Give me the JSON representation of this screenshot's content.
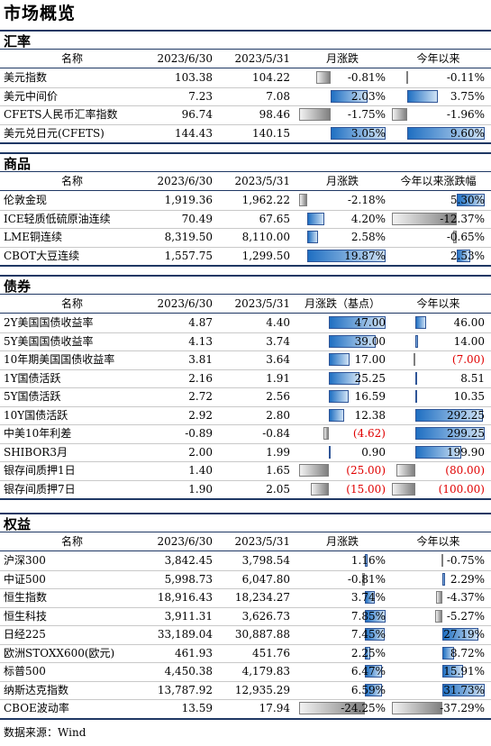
{
  "page_title": "市场概览",
  "source_note": "数据来源：Wind",
  "chart_data": {
    "type": "table",
    "sections": [
      {
        "title": "汇率",
        "headers": [
          "名称",
          "2023/6/30",
          "2023/5/31",
          "月涨跌",
          "今年以来"
        ],
        "bar1_unit": "pct",
        "bar2_unit": "pct",
        "rows": [
          {
            "name": "美元指数",
            "v1": "103.38",
            "v2": "104.22",
            "b1": -0.81,
            "b1_label": "-0.81%",
            "b2": -0.11,
            "b2_label": "-0.11%"
          },
          {
            "name": "美元中间价",
            "v1": "7.23",
            "v2": "7.08",
            "b1": 2.03,
            "b1_label": "2.03%",
            "b2": 3.75,
            "b2_label": "3.75%"
          },
          {
            "name": "CFETS人民币汇率指数",
            "v1": "96.74",
            "v2": "98.46",
            "b1": -1.75,
            "b1_label": "-1.75%",
            "b2": -1.96,
            "b2_label": "-1.96%"
          },
          {
            "name": "美元兑日元(CFETS)",
            "v1": "144.43",
            "v2": "140.15",
            "b1": 3.05,
            "b1_label": "3.05%",
            "b2": 9.6,
            "b2_label": "9.60%"
          }
        ]
      },
      {
        "title": "商品",
        "headers": [
          "名称",
          "2023/6/30",
          "2023/5/31",
          "月涨跌",
          "今年以来涨跌幅"
        ],
        "bar1_unit": "pct",
        "bar2_unit": "pct",
        "rows": [
          {
            "name": "伦敦金现",
            "v1": "1,919.36",
            "v2": "1,962.22",
            "b1": -2.18,
            "b1_label": "-2.18%",
            "b2": 5.3,
            "b2_label": "5.30%"
          },
          {
            "name": "ICE轻质低硫原油连续",
            "v1": "70.49",
            "v2": "67.65",
            "b1": 4.2,
            "b1_label": "4.20%",
            "b2": -12.37,
            "b2_label": "-12.37%"
          },
          {
            "name": "LME铜连续",
            "v1": "8,319.50",
            "v2": "8,110.00",
            "b1": 2.58,
            "b1_label": "2.58%",
            "b2": -0.65,
            "b2_label": "-0.65%"
          },
          {
            "name": "CBOT大豆连续",
            "v1": "1,557.75",
            "v2": "1,299.50",
            "b1": 19.87,
            "b1_label": "19.87%",
            "b2": 2.53,
            "b2_label": "2.53%"
          }
        ]
      },
      {
        "title": "债券",
        "headers": [
          "名称",
          "2023/6/30",
          "2023/5/31",
          "月涨跌（基点）",
          "今年以来"
        ],
        "bar1_unit": "bp",
        "bar2_unit": "bp",
        "rows": [
          {
            "name": "2Y美国国债收益率",
            "v1": "4.87",
            "v2": "4.40",
            "b1": 47.0,
            "b1_label": "47.00",
            "b2": 46.0,
            "b2_label": "46.00"
          },
          {
            "name": "5Y美国国债收益率",
            "v1": "4.13",
            "v2": "3.74",
            "b1": 39.0,
            "b1_label": "39.00",
            "b2": 14.0,
            "b2_label": "14.00"
          },
          {
            "name": "10年期美国国债收益率",
            "v1": "3.81",
            "v2": "3.64",
            "b1": 17.0,
            "b1_label": "17.00",
            "b2": -7.0,
            "b2_label": "(7.00)"
          },
          {
            "name": "1Y国债活跃",
            "v1": "2.16",
            "v2": "1.91",
            "b1": 25.25,
            "b1_label": "25.25",
            "b2": 8.51,
            "b2_label": "8.51"
          },
          {
            "name": "5Y国债活跃",
            "v1": "2.72",
            "v2": "2.56",
            "b1": 16.59,
            "b1_label": "16.59",
            "b2": 10.35,
            "b2_label": "10.35"
          },
          {
            "name": "10Y国债活跃",
            "v1": "2.92",
            "v2": "2.80",
            "b1": 12.38,
            "b1_label": "12.38",
            "b2": 292.25,
            "b2_label": "292.25"
          },
          {
            "name": "中美10年利差",
            "v1": "-0.89",
            "v2": "-0.84",
            "b1": -4.62,
            "b1_label": "(4.62)",
            "b2": 299.25,
            "b2_label": "299.25"
          },
          {
            "name": "SHIBOR3月",
            "v1": "2.00",
            "v2": "1.99",
            "b1": 0.9,
            "b1_label": "0.90",
            "b2": 199.9,
            "b2_label": "199.90"
          },
          {
            "name": "银存间质押1日",
            "v1": "1.40",
            "v2": "1.65",
            "b1": -25.0,
            "b1_label": "(25.00)",
            "b2": -80.0,
            "b2_label": "(80.00)"
          },
          {
            "name": "银存间质押7日",
            "v1": "1.90",
            "v2": "2.05",
            "b1": -15.0,
            "b1_label": "(15.00)",
            "b2": -100.0,
            "b2_label": "(100.00)"
          }
        ]
      },
      {
        "title": "权益",
        "headers": [
          "名称",
          "2023/6/30",
          "2023/5/31",
          "月涨跌",
          "今年以来"
        ],
        "bar1_unit": "pct",
        "bar2_unit": "pct",
        "rows": [
          {
            "name": "沪深300",
            "v1": "3,842.45",
            "v2": "3,798.54",
            "b1": 1.16,
            "b1_label": "1.16%",
            "b2": -0.75,
            "b2_label": "-0.75%"
          },
          {
            "name": "中证500",
            "v1": "5,998.73",
            "v2": "6,047.80",
            "b1": -0.81,
            "b1_label": "-0.81%",
            "b2": 2.29,
            "b2_label": "2.29%"
          },
          {
            "name": "恒生指数",
            "v1": "18,916.43",
            "v2": "18,234.27",
            "b1": 3.74,
            "b1_label": "3.74%",
            "b2": -4.37,
            "b2_label": "-4.37%"
          },
          {
            "name": "恒生科技",
            "v1": "3,911.31",
            "v2": "3,626.73",
            "b1": 7.85,
            "b1_label": "7.85%",
            "b2": -5.27,
            "b2_label": "-5.27%"
          },
          {
            "name": "日经225",
            "v1": "33,189.04",
            "v2": "30,887.88",
            "b1": 7.45,
            "b1_label": "7.45%",
            "b2": 27.19,
            "b2_label": "27.19%"
          },
          {
            "name": "欧洲STOXX600(欧元)",
            "v1": "461.93",
            "v2": "451.76",
            "b1": 2.25,
            "b1_label": "2.25%",
            "b2": 8.72,
            "b2_label": "8.72%"
          },
          {
            "name": "标普500",
            "v1": "4,450.38",
            "v2": "4,179.83",
            "b1": 6.47,
            "b1_label": "6.47%",
            "b2": 15.91,
            "b2_label": "15.91%"
          },
          {
            "name": "纳斯达克指数",
            "v1": "13,787.92",
            "v2": "12,935.29",
            "b1": 6.59,
            "b1_label": "6.59%",
            "b2": 31.73,
            "b2_label": "31.73%"
          },
          {
            "name": "CBOE波动率",
            "v1": "13.59",
            "v2": "17.94",
            "b1": -24.25,
            "b1_label": "-24.25%",
            "b2": -37.29,
            "b2_label": "-37.29%"
          }
        ]
      }
    ]
  }
}
